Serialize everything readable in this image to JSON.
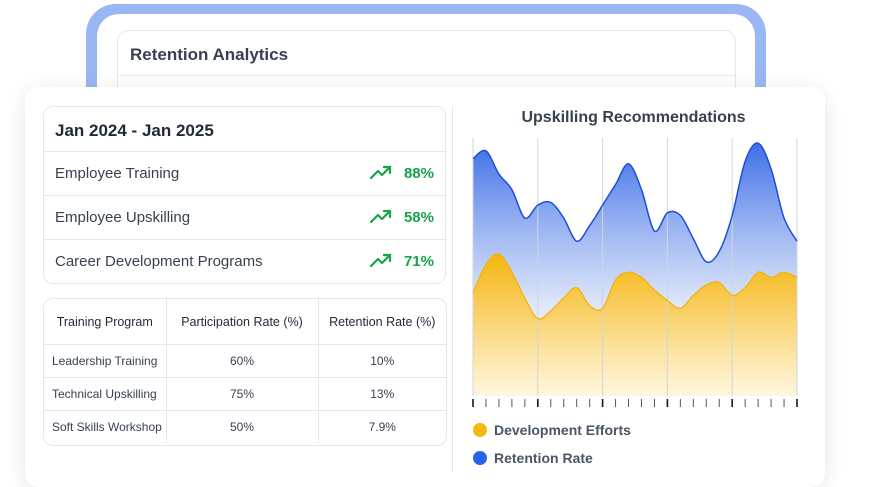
{
  "back_window": {
    "title": "Retention Analytics"
  },
  "metrics": {
    "date_range": "Jan 2024 - Jan 2025",
    "items": [
      {
        "label": "Employee Training",
        "value": "88%",
        "icon": "trending-up-icon"
      },
      {
        "label": "Employee Upskilling",
        "value": "58%",
        "icon": "trending-up-icon"
      },
      {
        "label": "Career Development Programs",
        "value": "71%",
        "icon": "trending-up-icon"
      }
    ]
  },
  "table": {
    "headers": [
      "Training Program",
      "Participation Rate (%)",
      "Retention Rate (%)"
    ],
    "rows": [
      [
        "Leadership Training",
        "60%",
        "10%"
      ],
      [
        "Technical Upskilling",
        "75%",
        "13%"
      ],
      [
        "Soft Skills Workshop",
        "50%",
        "7.9%"
      ]
    ]
  },
  "chart_data": {
    "type": "area",
    "title": "Upskilling Recommendations",
    "xlabel": "",
    "ylabel": "",
    "ylim": [
      0,
      100
    ],
    "grid": "vertical",
    "legend_position": "bottom",
    "x": [
      0,
      1,
      2,
      3,
      4,
      5,
      6,
      7,
      8,
      9,
      10,
      11,
      12,
      13,
      14,
      15,
      16,
      17,
      18,
      19,
      20,
      21,
      22,
      23,
      24,
      25
    ],
    "series": [
      {
        "name": "Retention Rate",
        "color": "#2563eb",
        "values": [
          92,
          95,
          86,
          80,
          69,
          74,
          75,
          69,
          60,
          66,
          74,
          82,
          90,
          80,
          64,
          71,
          70,
          61,
          52,
          56,
          70,
          91,
          98,
          88,
          69,
          60
        ]
      },
      {
        "name": "Development Efforts",
        "color": "#f5b80f",
        "values": [
          40,
          51,
          55,
          48,
          38,
          30,
          33,
          38,
          42,
          35,
          34,
          45,
          48,
          46,
          41,
          37,
          34,
          39,
          43,
          44,
          39,
          42,
          48,
          46,
          48,
          46
        ]
      }
    ]
  },
  "legend": [
    {
      "label": "Development Efforts",
      "color": "#f5b80f"
    },
    {
      "label": "Retention Rate",
      "color": "#2563eb"
    }
  ]
}
